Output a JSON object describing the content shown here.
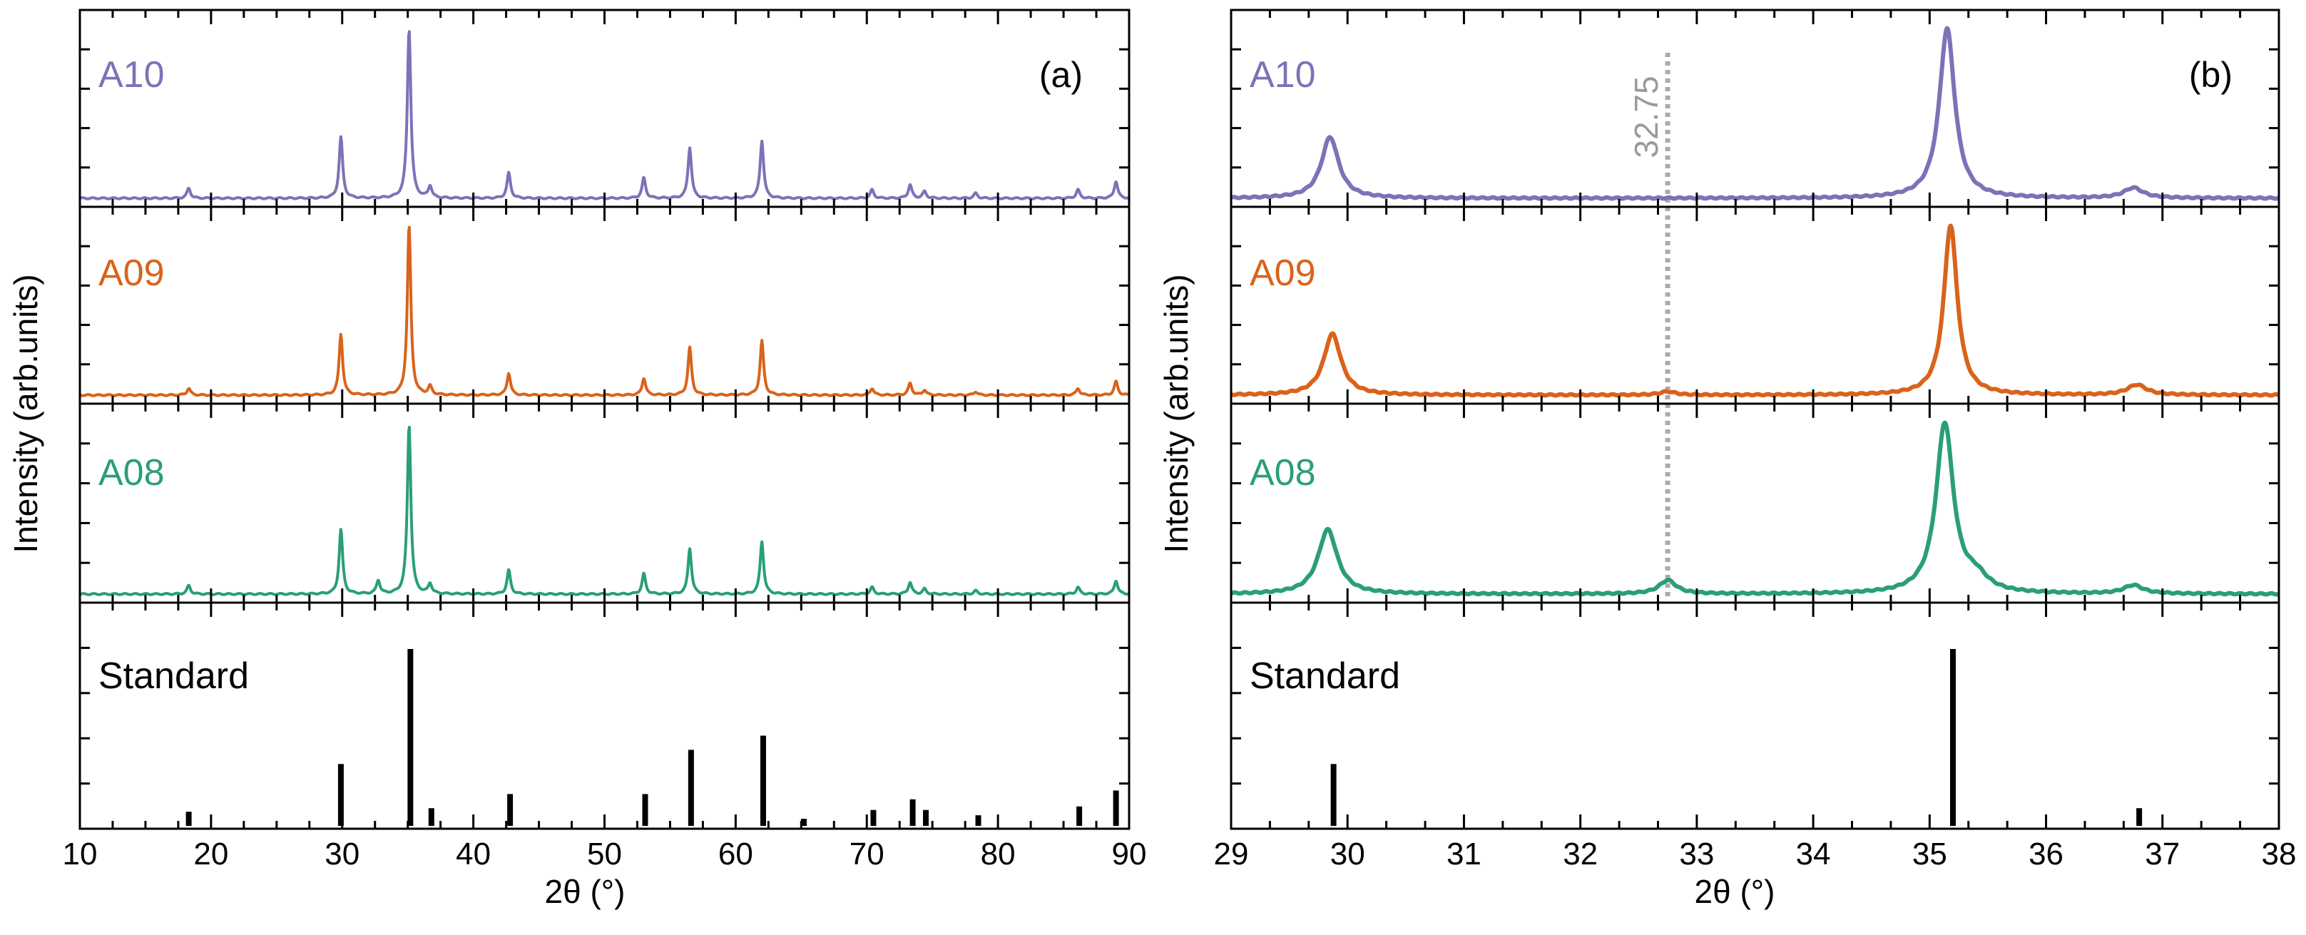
{
  "figure": {
    "ylabel": "Intensity (arb.units)",
    "xlabel": "2θ (°)",
    "colors": {
      "A10": "#7b73b8",
      "A09": "#d9631a",
      "A08": "#2a9e7a",
      "standard": "#000000",
      "reference_line": "#aaaaaa"
    }
  },
  "chart_data": [
    {
      "type": "line",
      "panel": "(a)",
      "xlabel": "2θ (°)",
      "ylabel": "Intensity (arb.units)",
      "xlim": [
        10,
        90
      ],
      "xticks": [
        "10",
        "20",
        "30",
        "40",
        "50",
        "60",
        "70",
        "80",
        "90"
      ],
      "series": [
        {
          "name": "A10",
          "color": "#7b73b8",
          "peaks": [
            [
              18.3,
              0.06
            ],
            [
              29.9,
              0.36
            ],
            [
              35.1,
              1.0
            ],
            [
              36.7,
              0.07
            ],
            [
              42.7,
              0.15
            ],
            [
              53.0,
              0.12
            ],
            [
              56.5,
              0.3
            ],
            [
              62.0,
              0.34
            ],
            [
              70.4,
              0.05
            ],
            [
              73.3,
              0.08
            ],
            [
              74.4,
              0.04
            ],
            [
              78.3,
              0.03
            ],
            [
              86.1,
              0.05
            ],
            [
              89.0,
              0.1
            ]
          ]
        },
        {
          "name": "A09",
          "color": "#d9631a",
          "peaks": [
            [
              18.3,
              0.04
            ],
            [
              29.9,
              0.36
            ],
            [
              35.1,
              1.0
            ],
            [
              36.7,
              0.05
            ],
            [
              42.7,
              0.13
            ],
            [
              53.0,
              0.1
            ],
            [
              56.5,
              0.28
            ],
            [
              62.0,
              0.32
            ],
            [
              70.4,
              0.04
            ],
            [
              73.3,
              0.07
            ],
            [
              74.4,
              0.03
            ],
            [
              78.3,
              0.02
            ],
            [
              86.1,
              0.04
            ],
            [
              89.0,
              0.08
            ]
          ]
        },
        {
          "name": "A08",
          "color": "#2a9e7a",
          "peaks": [
            [
              18.3,
              0.05
            ],
            [
              29.9,
              0.38
            ],
            [
              32.75,
              0.08
            ],
            [
              35.1,
              1.0
            ],
            [
              36.7,
              0.06
            ],
            [
              42.7,
              0.14
            ],
            [
              53.0,
              0.12
            ],
            [
              56.5,
              0.27
            ],
            [
              62.0,
              0.31
            ],
            [
              70.4,
              0.04
            ],
            [
              73.3,
              0.07
            ],
            [
              74.4,
              0.03
            ],
            [
              78.3,
              0.02
            ],
            [
              86.1,
              0.04
            ],
            [
              89.0,
              0.08
            ]
          ]
        }
      ],
      "standard": {
        "name": "Standard",
        "lines": [
          [
            18.3,
            0.08
          ],
          [
            29.9,
            0.35
          ],
          [
            35.2,
            1.0
          ],
          [
            36.8,
            0.1
          ],
          [
            42.8,
            0.18
          ],
          [
            53.1,
            0.18
          ],
          [
            56.6,
            0.43
          ],
          [
            62.1,
            0.51
          ],
          [
            65.2,
            0.04
          ],
          [
            70.5,
            0.09
          ],
          [
            73.5,
            0.15
          ],
          [
            74.5,
            0.09
          ],
          [
            78.5,
            0.06
          ],
          [
            86.2,
            0.11
          ],
          [
            89.0,
            0.2
          ]
        ]
      }
    },
    {
      "type": "line",
      "panel": "(b)",
      "xlabel": "2θ (°)",
      "ylabel": "Intensity (arb.units)",
      "xlim": [
        29,
        38
      ],
      "xticks": [
        "29",
        "30",
        "31",
        "32",
        "33",
        "34",
        "35",
        "36",
        "37",
        "38"
      ],
      "reference_line": {
        "x": 32.75,
        "label": "32.75"
      },
      "series": [
        {
          "name": "A10",
          "color": "#7b73b8",
          "peaks": [
            [
              29.85,
              0.36,
              0.09
            ],
            [
              35.15,
              1.0,
              0.08
            ],
            [
              36.75,
              0.06,
              0.1
            ]
          ]
        },
        {
          "name": "A09",
          "color": "#d9631a",
          "peaks": [
            [
              29.87,
              0.36,
              0.09
            ],
            [
              32.75,
              0.02,
              0.08
            ],
            [
              35.18,
              1.0,
              0.07
            ],
            [
              36.78,
              0.06,
              0.1
            ]
          ]
        },
        {
          "name": "A08",
          "color": "#2a9e7a",
          "peaks": [
            [
              29.83,
              0.38,
              0.1
            ],
            [
              32.75,
              0.08,
              0.09
            ],
            [
              35.13,
              1.0,
              0.09
            ],
            [
              35.4,
              0.08,
              0.12
            ],
            [
              36.75,
              0.05,
              0.1
            ]
          ]
        }
      ],
      "standard": {
        "name": "Standard",
        "lines": [
          [
            29.88,
            0.35
          ],
          [
            35.2,
            1.0
          ],
          [
            36.8,
            0.1
          ]
        ]
      }
    }
  ]
}
